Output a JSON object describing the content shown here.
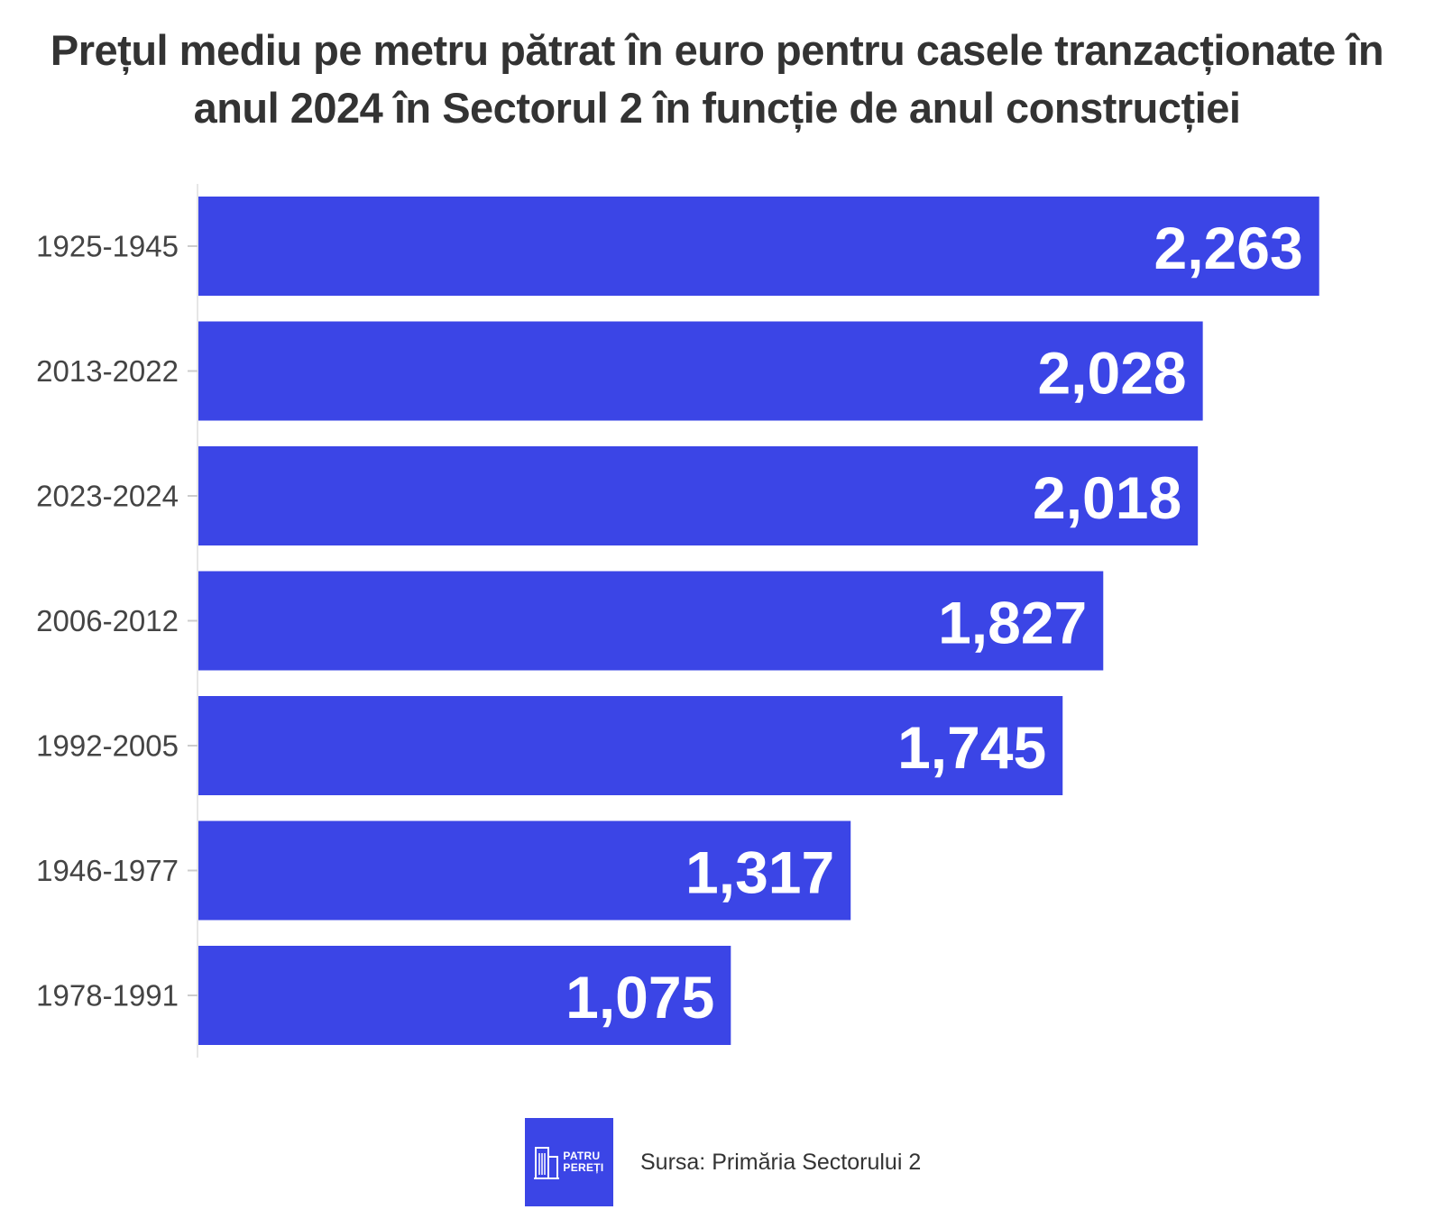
{
  "chart_data": {
    "type": "bar",
    "orientation": "horizontal",
    "title": "Prețul mediu pe metru pătrat în euro pentru casele tranzacționate în anul 2024 în Sectorul 2 în funcție de anul construcției",
    "title_lines": [
      "Prețul mediu pe metru pătrat în euro pentru casele tranzacționate în",
      "anul 2024 în Sectorul 2 în funcție de anul construcției"
    ],
    "categories": [
      "1925-1945",
      "2013-2022",
      "2023-2024",
      "2006-2012",
      "1992-2005",
      "1946-1977",
      "1978-1991"
    ],
    "values": [
      2263,
      2028,
      2018,
      1827,
      1745,
      1317,
      1075
    ],
    "value_labels": [
      "2,263",
      "2,028",
      "2,018",
      "1,827",
      "1,745",
      "1,317",
      "1,075"
    ],
    "xlim": [
      0,
      2320
    ],
    "xlabel": "",
    "ylabel": "",
    "grid": false,
    "bar_color": "#3b45e6"
  },
  "footer": {
    "logo_line1": "PATRU",
    "logo_line2": "PEREȚI",
    "source": "Sursa: Primăria Sectorului 2"
  },
  "colors": {
    "bar": "#3b45e6",
    "title": "#333333",
    "axis_text": "#444444"
  }
}
